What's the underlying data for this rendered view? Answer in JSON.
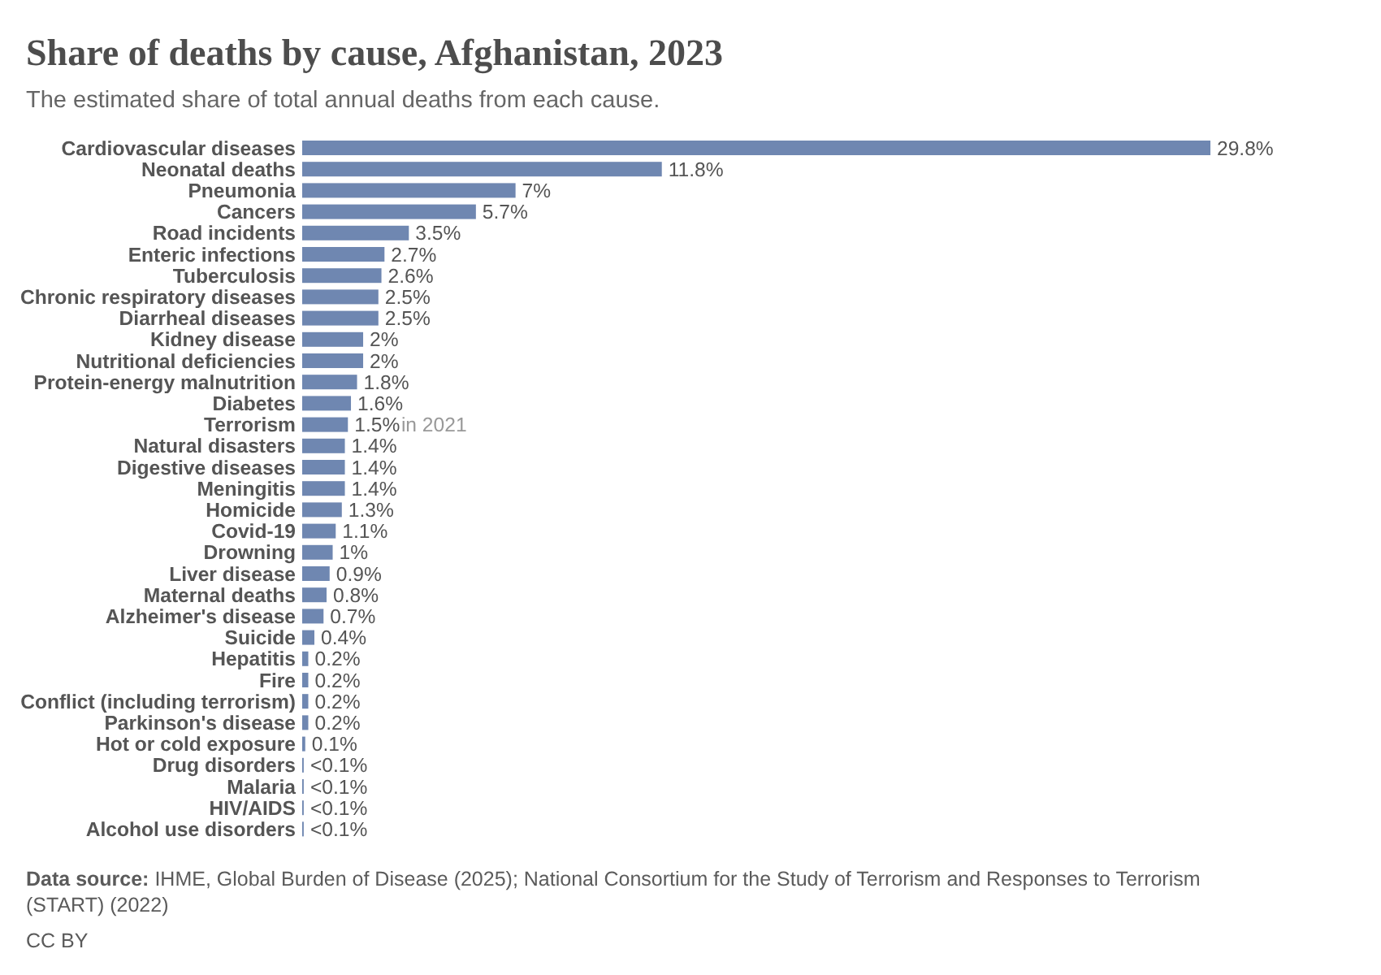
{
  "chart_data": {
    "type": "bar",
    "orientation": "horizontal",
    "title": "Share of deaths by cause, Afghanistan, 2023",
    "subtitle": "The estimated share of total annual deaths from each cause.",
    "categories": [
      "Cardiovascular diseases",
      "Neonatal deaths",
      "Pneumonia",
      "Cancers",
      "Road incidents",
      "Enteric infections",
      "Tuberculosis",
      "Chronic respiratory diseases",
      "Diarrheal diseases",
      "Kidney disease",
      "Nutritional deficiencies",
      "Protein-energy malnutrition",
      "Diabetes",
      "Terrorism",
      "Natural disasters",
      "Digestive diseases",
      "Meningitis",
      "Homicide",
      "Covid-19",
      "Drowning",
      "Liver disease",
      "Maternal deaths",
      "Alzheimer's disease",
      "Suicide",
      "Hepatitis",
      "Fire",
      "Conflict (including terrorism)",
      "Parkinson's disease",
      "Hot or cold exposure",
      "Drug disorders",
      "Malaria",
      "HIV/AIDS",
      "Alcohol use disorders"
    ],
    "values": [
      29.8,
      11.8,
      7,
      5.7,
      3.5,
      2.7,
      2.6,
      2.5,
      2.5,
      2,
      2,
      1.8,
      1.6,
      1.5,
      1.4,
      1.4,
      1.4,
      1.3,
      1.1,
      1,
      0.9,
      0.8,
      0.7,
      0.4,
      0.2,
      0.2,
      0.2,
      0.2,
      0.1,
      0.05,
      0.05,
      0.05,
      0.05
    ],
    "value_labels": [
      "29.8%",
      "11.8%",
      "7%",
      "5.7%",
      "3.5%",
      "2.7%",
      "2.6%",
      "2.5%",
      "2.5%",
      "2%",
      "2%",
      "1.8%",
      "1.6%",
      "1.5%",
      "1.4%",
      "1.4%",
      "1.4%",
      "1.3%",
      "1.1%",
      "1%",
      "0.9%",
      "0.8%",
      "0.7%",
      "0.4%",
      "0.2%",
      "0.2%",
      "0.2%",
      "0.2%",
      "0.1%",
      "<0.1%",
      "<0.1%",
      "<0.1%",
      "<0.1%"
    ],
    "color": "#6f87b1",
    "annotations": [
      {
        "text": "in 2021",
        "x": 1.5,
        "y": "Terrorism"
      },
      "Data source: IHME, Global Burden of Disease (2025); National Consortium for the Study of Terrorism and Responses to Terrorism (START) (2022)",
      "CC BY"
    ]
  }
}
